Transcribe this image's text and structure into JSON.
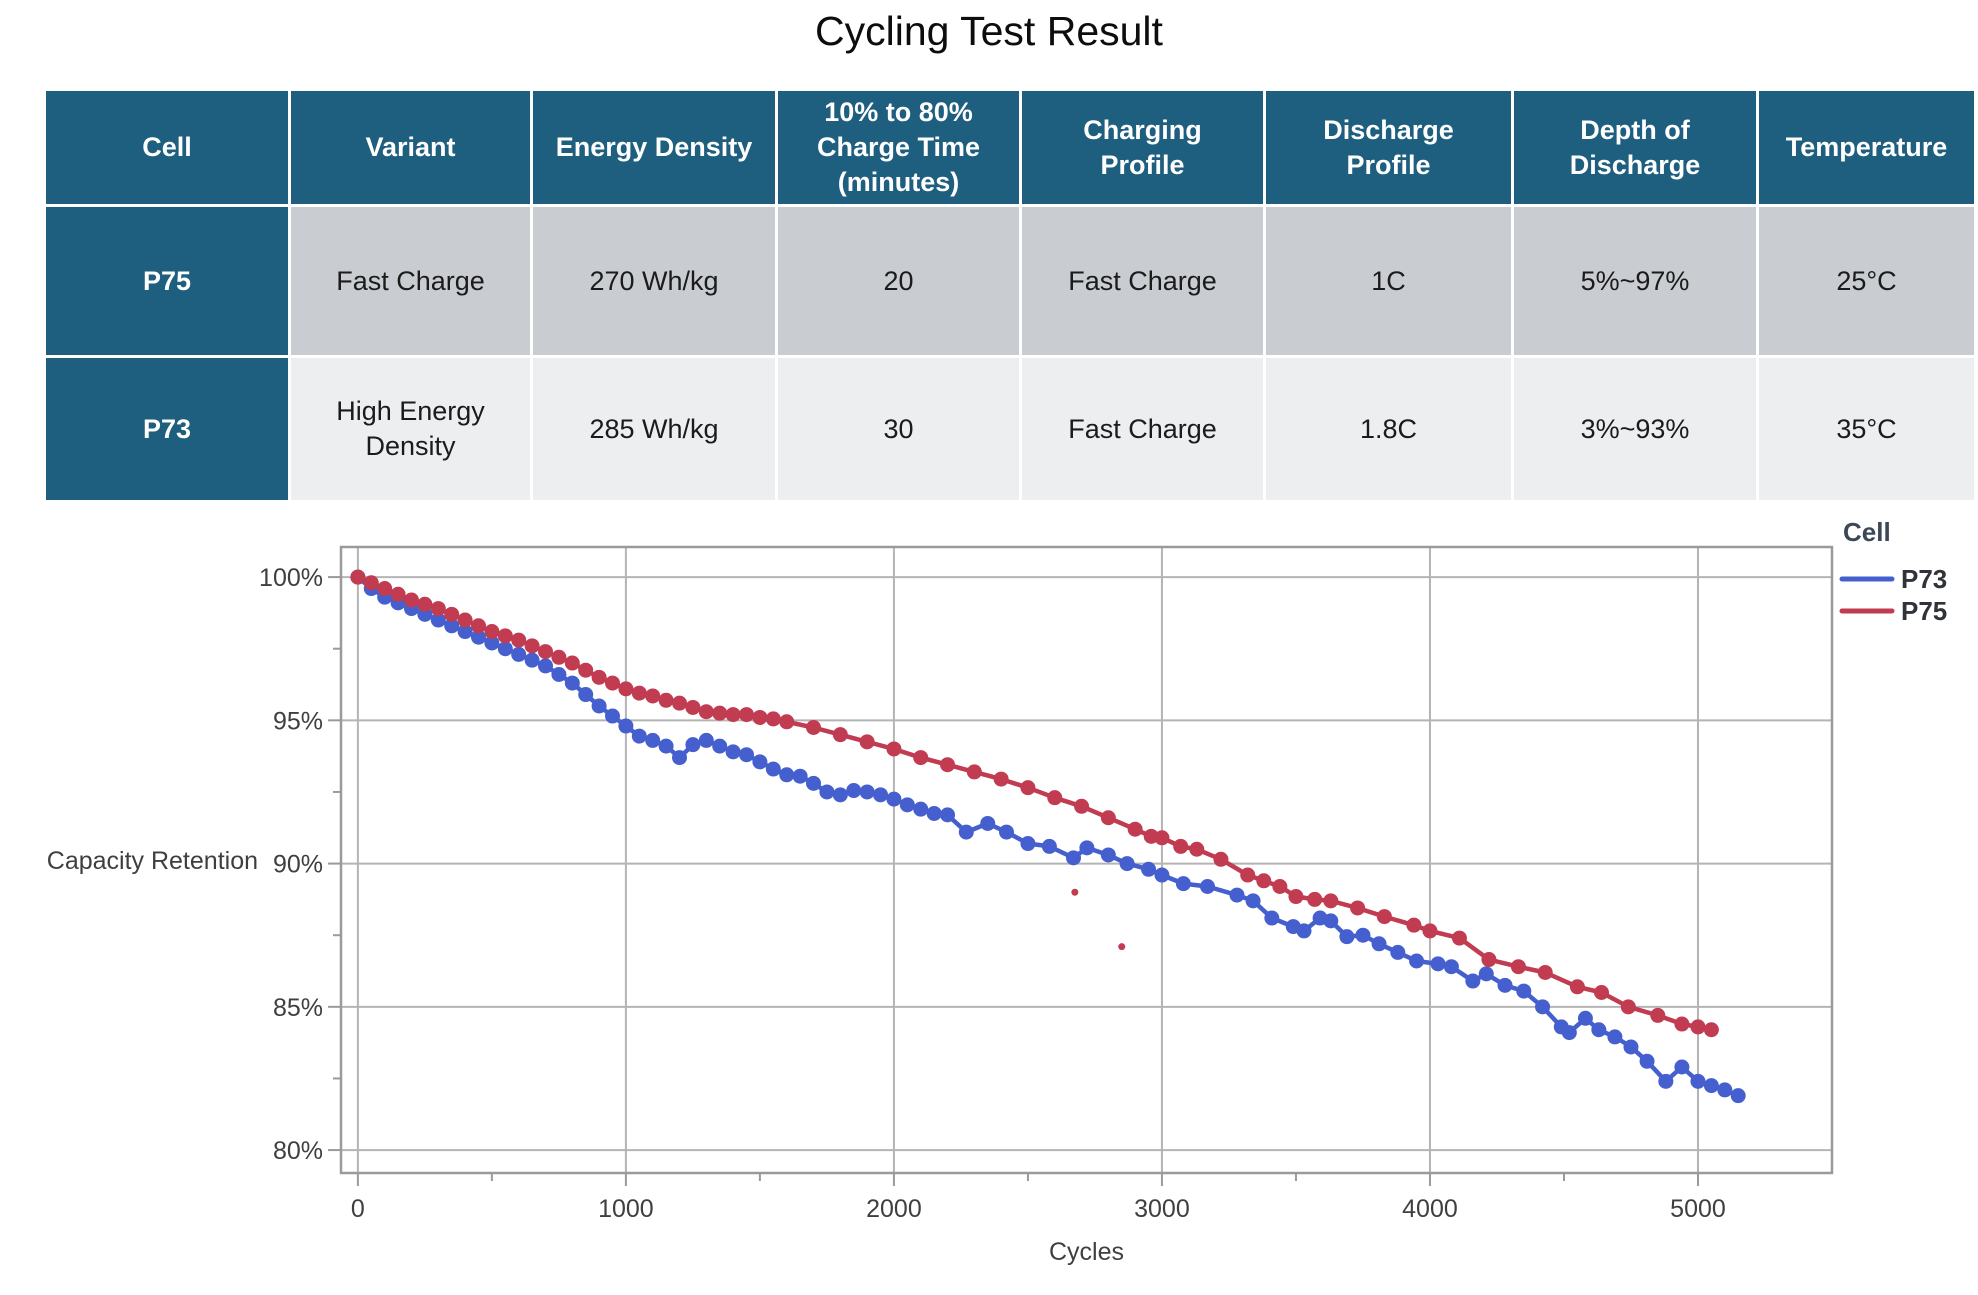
{
  "page_title": "Cycling Test Result",
  "colors": {
    "table_header_bg": "#1E5E7E",
    "table_row1_bg": "#C9CDD2",
    "table_row2_bg": "#ECEEF0",
    "p73_blue": "#4560CE",
    "p75_red": "#C13B51",
    "gridline": "#B4B4B4",
    "axis_frame": "#9A9A9A",
    "tick_label": "#3F3F3F"
  },
  "table": {
    "headers": [
      "Cell",
      "Variant",
      "Energy Density",
      "10% to 80%\nCharge Time\n(minutes)",
      "Charging\nProfile",
      "Discharge\nProfile",
      "Depth of\nDischarge",
      "Temperature"
    ],
    "rows": [
      [
        "P75",
        "Fast Charge",
        "270 Wh/kg",
        "20",
        "Fast Charge",
        "1C",
        "5%~97%",
        "25°C"
      ],
      [
        "P73",
        "High Energy\nDensity",
        "285 Wh/kg",
        "30",
        "Fast Charge",
        "1.8C",
        "3%~93%",
        "35°C"
      ]
    ]
  },
  "chart_data": {
    "type": "line",
    "xlabel": "Cycles",
    "ylabel": "Capacity Retention",
    "legend_title": "Cell",
    "legend_position": "right-top-outside",
    "grid": true,
    "xlim": [
      -63,
      5500
    ],
    "ylim": [
      79.2,
      101.05
    ],
    "x_ticks_major": [
      0,
      1000,
      2000,
      3000,
      4000,
      5000
    ],
    "x_ticks_minor": [
      500,
      1500,
      2500,
      3500,
      4500
    ],
    "y_ticks_major": [
      80,
      85,
      90,
      95,
      100
    ],
    "y_ticks_minor": [
      82.5,
      87.5,
      92.5,
      97.5
    ],
    "y_tick_suffix": "%",
    "series": [
      {
        "name": "P73",
        "color": "#4560CE",
        "points": [
          [
            0,
            100
          ],
          [
            50,
            99.6
          ],
          [
            100,
            99.3
          ],
          [
            150,
            99.1
          ],
          [
            200,
            98.9
          ],
          [
            250,
            98.7
          ],
          [
            300,
            98.5
          ],
          [
            350,
            98.3
          ],
          [
            400,
            98.1
          ],
          [
            450,
            97.9
          ],
          [
            500,
            97.7
          ],
          [
            550,
            97.5
          ],
          [
            600,
            97.3
          ],
          [
            650,
            97.1
          ],
          [
            700,
            96.9
          ],
          [
            750,
            96.6
          ],
          [
            800,
            96.3
          ],
          [
            850,
            95.9
          ],
          [
            900,
            95.5
          ],
          [
            950,
            95.15
          ],
          [
            1000,
            94.8
          ],
          [
            1050,
            94.45
          ],
          [
            1100,
            94.3
          ],
          [
            1150,
            94.1
          ],
          [
            1200,
            93.7
          ],
          [
            1250,
            94.15
          ],
          [
            1300,
            94.3
          ],
          [
            1350,
            94.1
          ],
          [
            1400,
            93.9
          ],
          [
            1450,
            93.8
          ],
          [
            1500,
            93.55
          ],
          [
            1550,
            93.3
          ],
          [
            1600,
            93.1
          ],
          [
            1650,
            93.05
          ],
          [
            1700,
            92.8
          ],
          [
            1750,
            92.5
          ],
          [
            1800,
            92.4
          ],
          [
            1850,
            92.55
          ],
          [
            1900,
            92.5
          ],
          [
            1950,
            92.4
          ],
          [
            2000,
            92.25
          ],
          [
            2050,
            92.05
          ],
          [
            2100,
            91.9
          ],
          [
            2150,
            91.75
          ],
          [
            2200,
            91.7
          ],
          [
            2270,
            91.1
          ],
          [
            2350,
            91.4
          ],
          [
            2420,
            91.1
          ],
          [
            2500,
            90.7
          ],
          [
            2580,
            90.6
          ],
          [
            2670,
            90.2
          ],
          [
            2720,
            90.55
          ],
          [
            2800,
            90.3
          ],
          [
            2870,
            90.0
          ],
          [
            2950,
            89.8
          ],
          [
            3000,
            89.6
          ],
          [
            3080,
            89.3
          ],
          [
            3170,
            89.2
          ],
          [
            3280,
            88.9
          ],
          [
            3340,
            88.7
          ],
          [
            3410,
            88.1
          ],
          [
            3490,
            87.8
          ],
          [
            3530,
            87.65
          ],
          [
            3590,
            88.1
          ],
          [
            3630,
            88.0
          ],
          [
            3690,
            87.45
          ],
          [
            3750,
            87.5
          ],
          [
            3810,
            87.2
          ],
          [
            3880,
            86.9
          ],
          [
            3950,
            86.6
          ],
          [
            4030,
            86.5
          ],
          [
            4080,
            86.4
          ],
          [
            4160,
            85.9
          ],
          [
            4210,
            86.15
          ],
          [
            4280,
            85.75
          ],
          [
            4350,
            85.55
          ],
          [
            4420,
            85.0
          ],
          [
            4490,
            84.3
          ],
          [
            4520,
            84.1
          ],
          [
            4580,
            84.6
          ],
          [
            4630,
            84.2
          ],
          [
            4690,
            83.95
          ],
          [
            4750,
            83.6
          ],
          [
            4810,
            83.1
          ],
          [
            4880,
            82.4
          ],
          [
            4940,
            82.9
          ],
          [
            5000,
            82.4
          ],
          [
            5050,
            82.25
          ],
          [
            5100,
            82.1
          ],
          [
            5150,
            81.9
          ]
        ]
      },
      {
        "name": "P75",
        "color": "#C13B51",
        "points": [
          [
            0,
            100
          ],
          [
            50,
            99.8
          ],
          [
            100,
            99.6
          ],
          [
            150,
            99.4
          ],
          [
            200,
            99.2
          ],
          [
            250,
            99.05
          ],
          [
            300,
            98.9
          ],
          [
            350,
            98.7
          ],
          [
            400,
            98.5
          ],
          [
            450,
            98.3
          ],
          [
            500,
            98.1
          ],
          [
            550,
            97.95
          ],
          [
            600,
            97.8
          ],
          [
            650,
            97.6
          ],
          [
            700,
            97.4
          ],
          [
            750,
            97.2
          ],
          [
            800,
            97.0
          ],
          [
            850,
            96.75
          ],
          [
            900,
            96.5
          ],
          [
            950,
            96.3
          ],
          [
            1000,
            96.1
          ],
          [
            1050,
            95.95
          ],
          [
            1100,
            95.85
          ],
          [
            1150,
            95.7
          ],
          [
            1200,
            95.6
          ],
          [
            1250,
            95.45
          ],
          [
            1300,
            95.3
          ],
          [
            1350,
            95.25
          ],
          [
            1400,
            95.2
          ],
          [
            1450,
            95.2
          ],
          [
            1500,
            95.1
          ],
          [
            1550,
            95.05
          ],
          [
            1600,
            94.95
          ],
          [
            1700,
            94.75
          ],
          [
            1800,
            94.5
          ],
          [
            1900,
            94.25
          ],
          [
            2000,
            94.0
          ],
          [
            2100,
            93.7
          ],
          [
            2200,
            93.45
          ],
          [
            2300,
            93.2
          ],
          [
            2400,
            92.95
          ],
          [
            2500,
            92.65
          ],
          [
            2600,
            92.3
          ],
          [
            2700,
            92.0
          ],
          [
            2800,
            91.6
          ],
          [
            2900,
            91.2
          ],
          [
            2960,
            90.95
          ],
          [
            3000,
            90.9
          ],
          [
            3070,
            90.6
          ],
          [
            3130,
            90.5
          ],
          [
            3220,
            90.15
          ],
          [
            3320,
            89.6
          ],
          [
            3380,
            89.4
          ],
          [
            3440,
            89.2
          ],
          [
            3500,
            88.85
          ],
          [
            3570,
            88.75
          ],
          [
            3630,
            88.7
          ],
          [
            3730,
            88.45
          ],
          [
            3830,
            88.15
          ],
          [
            3940,
            87.85
          ],
          [
            4000,
            87.65
          ],
          [
            4110,
            87.4
          ],
          [
            4220,
            86.65
          ],
          [
            4330,
            86.4
          ],
          [
            4430,
            86.2
          ],
          [
            4550,
            85.7
          ],
          [
            4640,
            85.5
          ],
          [
            4740,
            85.0
          ],
          [
            4850,
            84.7
          ],
          [
            4940,
            84.4
          ],
          [
            5000,
            84.3
          ],
          [
            5050,
            84.2
          ]
        ]
      }
    ],
    "outliers": {
      "color": "#C13B51",
      "points": [
        [
          2675,
          89.0
        ],
        [
          2850,
          87.1
        ]
      ]
    }
  }
}
